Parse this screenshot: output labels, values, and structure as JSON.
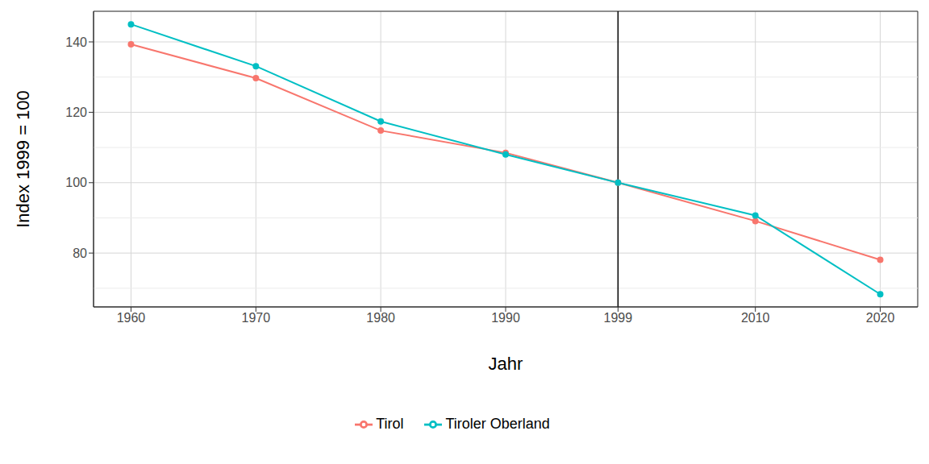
{
  "chart_data": {
    "type": "line",
    "x": [
      1960,
      1970,
      1980,
      1990,
      1999,
      2010,
      2020
    ],
    "series": [
      {
        "name": "Tirol",
        "color": "#F8766D",
        "values": [
          139.3,
          129.7,
          114.8,
          108.5,
          100,
          89.1,
          78.1
        ]
      },
      {
        "name": "Tiroler Oberland",
        "color": "#00BFC4",
        "values": [
          145,
          133.1,
          117.4,
          108,
          100,
          90.7,
          68.3
        ]
      }
    ],
    "x_label": "Jahr",
    "y_label": "Index 1999 = 100",
    "xlim": [
      1957,
      2023
    ],
    "xticks": [
      1960,
      1970,
      1980,
      1990,
      1999,
      2010,
      2020
    ],
    "ylim": [
      64.7,
      148.7
    ],
    "yticks": [
      80,
      100,
      120,
      140
    ],
    "vline": 1999,
    "grid": true,
    "legend": "bottom",
    "marker": "circle"
  }
}
